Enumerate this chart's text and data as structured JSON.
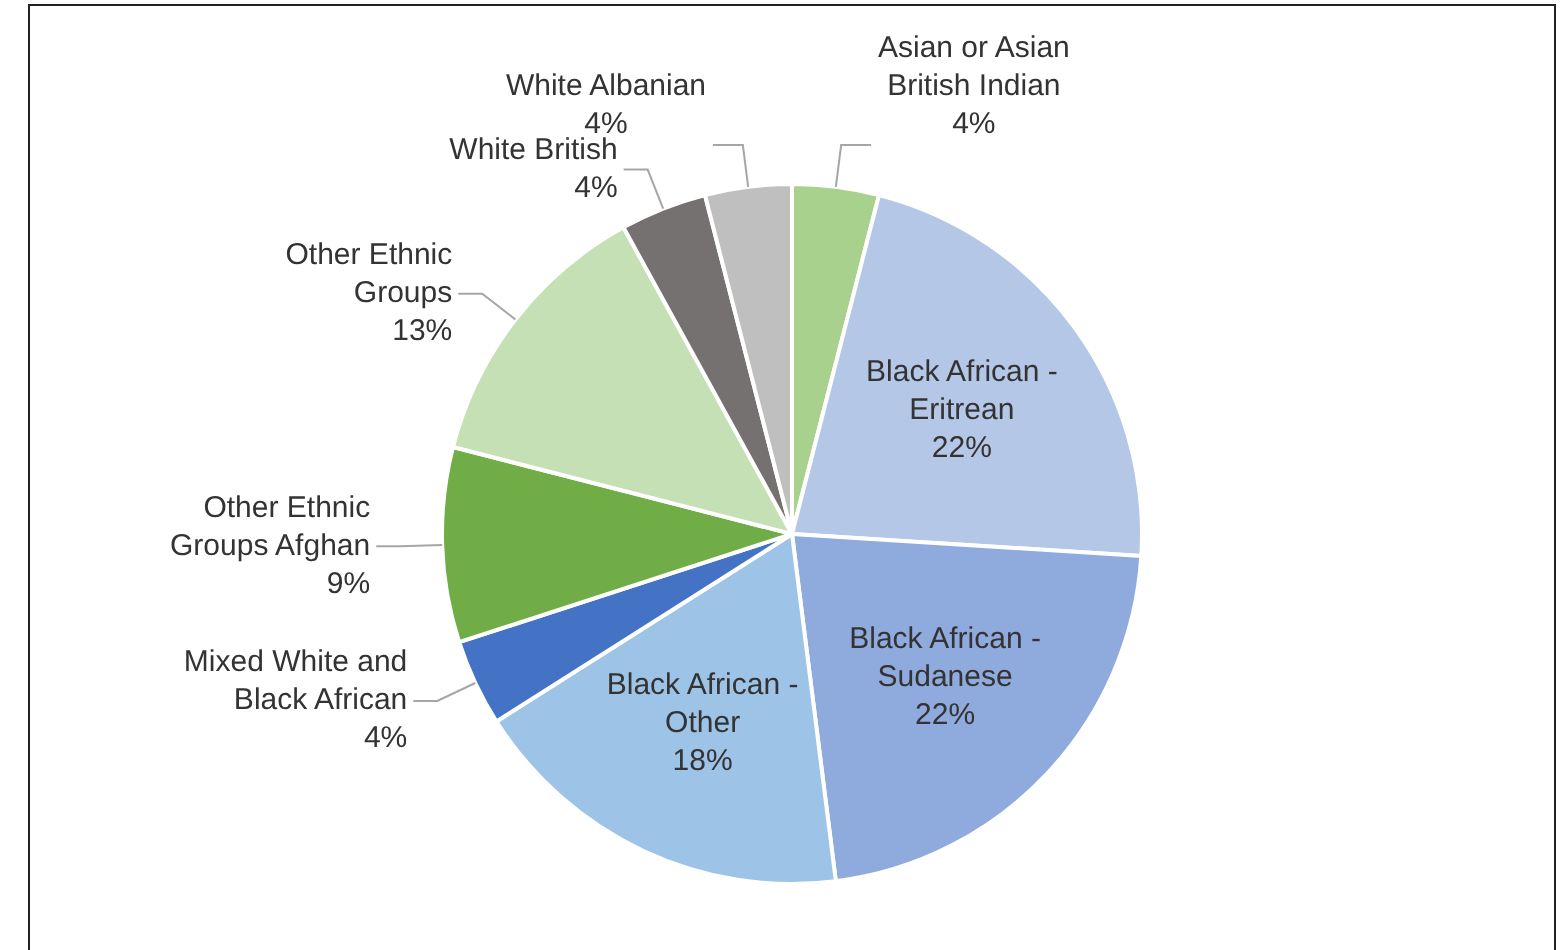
{
  "chart_data": {
    "type": "pie",
    "categories": [
      "Asian or Asian British Indian",
      "Black African - Eritrean",
      "Black African - Sudanese",
      "Black African - Other",
      "Mixed White and Black African",
      "Other Ethnic Groups Afghan",
      "Other Ethnic Groups",
      "White British",
      "White Albanian"
    ],
    "values": [
      4,
      22,
      22,
      18,
      4,
      9,
      13,
      4,
      4
    ],
    "value_labels": [
      "4%",
      "22%",
      "22%",
      "18%",
      "4%",
      "9%",
      "13%",
      "4%",
      "4%"
    ],
    "colors": [
      "#a9d18e",
      "#b4c7e7",
      "#8faadc",
      "#9dc3e6",
      "#4472c4",
      "#70ad47",
      "#c5e0b4",
      "#767171",
      "#bfbfbf"
    ],
    "legend": false
  }
}
